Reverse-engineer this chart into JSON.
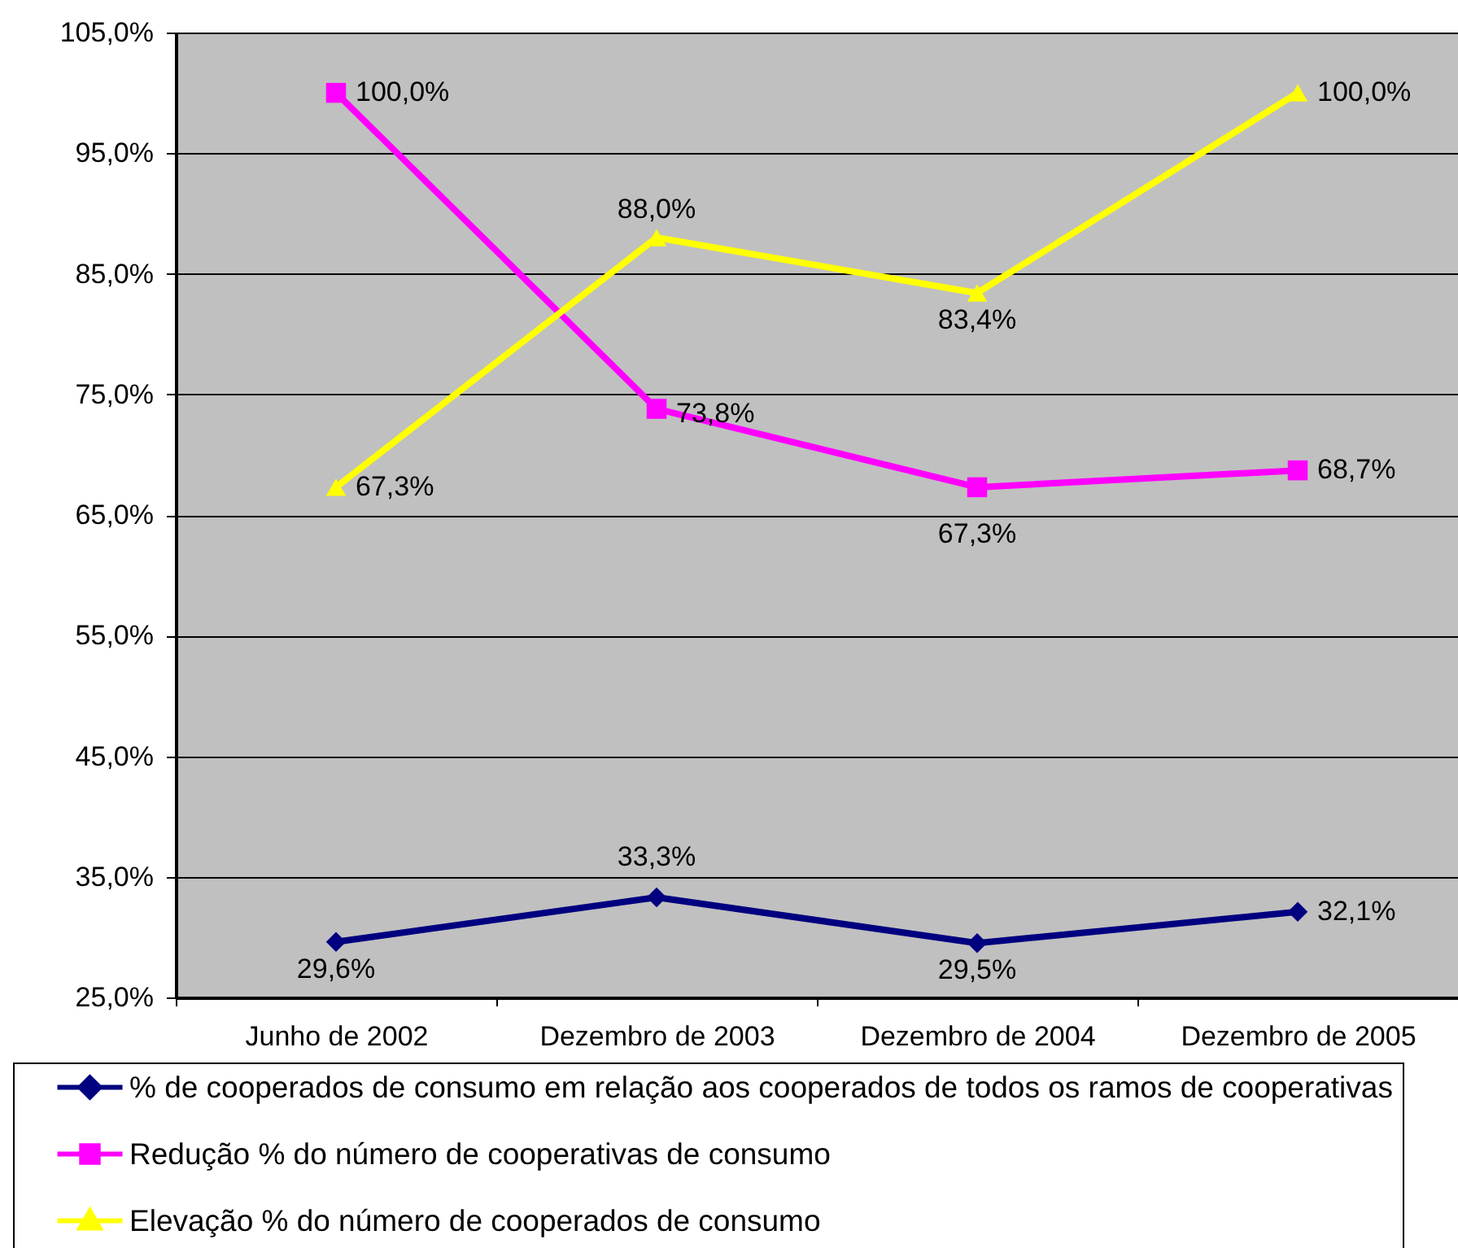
{
  "chart_data": {
    "type": "line",
    "categories": [
      "Junho de 2002",
      "Dezembro de 2003",
      "Dezembro de 2004",
      "Dezembro de 2005"
    ],
    "series": [
      {
        "name": "% de cooperados de consumo em relação aos cooperados de todos os ramos de cooperativas",
        "color": "#000080",
        "marker": "diamond",
        "values": [
          29.6,
          33.3,
          29.5,
          32.1
        ],
        "value_labels": [
          "29,6%",
          "33,3%",
          "29,5%",
          "32,1%"
        ]
      },
      {
        "name": "Redução % do número de cooperativas de consumo",
        "color": "#ff00ff",
        "marker": "square",
        "values": [
          100.0,
          73.8,
          67.3,
          68.7
        ],
        "value_labels": [
          "100,0%",
          "73,8%",
          "67,3%",
          "68,7%"
        ]
      },
      {
        "name": "Elevação % do número de cooperados de consumo",
        "color": "#ffff00",
        "marker": "triangle",
        "values": [
          67.3,
          88.0,
          83.4,
          100.0
        ],
        "value_labels": [
          "67,3%",
          "88,0%",
          "83,4%",
          "100,0%"
        ]
      }
    ],
    "ylim": [
      25,
      105
    ],
    "yticks": [
      {
        "value": 25,
        "label": "25,0%"
      },
      {
        "value": 35,
        "label": "35,0%"
      },
      {
        "value": 45,
        "label": "45,0%"
      },
      {
        "value": 55,
        "label": "55,0%"
      },
      {
        "value": 65,
        "label": "65,0%"
      },
      {
        "value": 75,
        "label": "75,0%"
      },
      {
        "value": 85,
        "label": "85,0%"
      },
      {
        "value": 95,
        "label": "95,0%"
      },
      {
        "value": 105,
        "label": "105,0%"
      }
    ],
    "grid": "y",
    "legend": "bottom"
  }
}
